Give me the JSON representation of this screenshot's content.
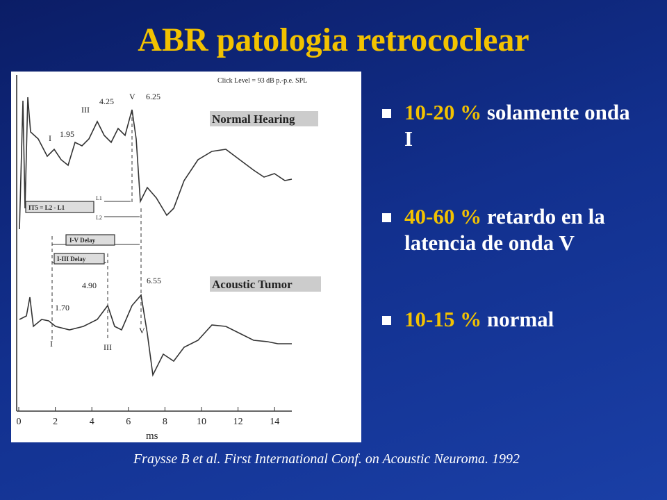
{
  "slide": {
    "title": "ABR patologia retrococlear",
    "figure": {
      "click_level": "Click Level = 93 dB p.-p.e. SPL",
      "normal_label": "Normal Hearing",
      "tumor_label": "Acoustic Tumor",
      "normal_peaks": [
        "I",
        "1.95",
        "III",
        "4.25",
        "V",
        "6.25"
      ],
      "interval_label": "IT5 = L2 - L1",
      "l1": "L1",
      "l2": "L2",
      "iv_delay": "I-V Delay",
      "iiii_delay": "I-III Delay",
      "tumor_peaks": [
        "1.70",
        "4.90",
        "6.55",
        "I",
        "III",
        "V"
      ],
      "xticks": [
        0,
        2,
        4,
        6,
        8,
        10,
        12,
        14
      ],
      "xlabel": "ms"
    },
    "bullets": [
      {
        "highlight": "10-20 %",
        "text": "solamente onda I"
      },
      {
        "highlight": "40-60 %",
        "text": "retardo en la latencia de onda V"
      },
      {
        "highlight": "10-15 %",
        "text": "normal"
      }
    ],
    "citation": "Fraysse B et al. First International Conf. on Acoustic Neuroma. 1992"
  }
}
